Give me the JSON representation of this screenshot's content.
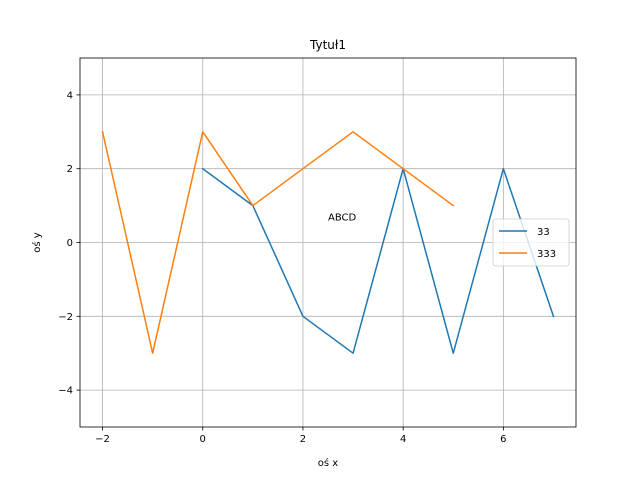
{
  "chart_data": {
    "type": "line",
    "title": "Tytuł1",
    "xlabel": "oś x",
    "ylabel": "oś y",
    "xlim": [
      -2.45,
      7.45
    ],
    "ylim": [
      -5,
      5
    ],
    "xticks": [
      -2,
      0,
      2,
      4,
      6
    ],
    "yticks": [
      -4,
      -2,
      0,
      2,
      4
    ],
    "xtick_labels": [
      "−2",
      "0",
      "2",
      "4",
      "6"
    ],
    "ytick_labels": [
      "−4",
      "−2",
      "0",
      "2",
      "4"
    ],
    "grid": true,
    "legend_position": "right",
    "annotation": {
      "text": "ABCD",
      "x": 2.5,
      "y": 0.6
    },
    "series": [
      {
        "name": "33",
        "color": "#1f77b4",
        "x": [
          0,
          1,
          2,
          3,
          4,
          5,
          6,
          7
        ],
        "y": [
          2,
          1,
          -2,
          -3,
          2,
          -3,
          2,
          -2
        ]
      },
      {
        "name": "333",
        "color": "#ff7f0e",
        "x": [
          -2,
          -1,
          0,
          1,
          2,
          3,
          4,
          5
        ],
        "y": [
          3,
          -3,
          3,
          1,
          2,
          3,
          2,
          1
        ]
      }
    ]
  }
}
